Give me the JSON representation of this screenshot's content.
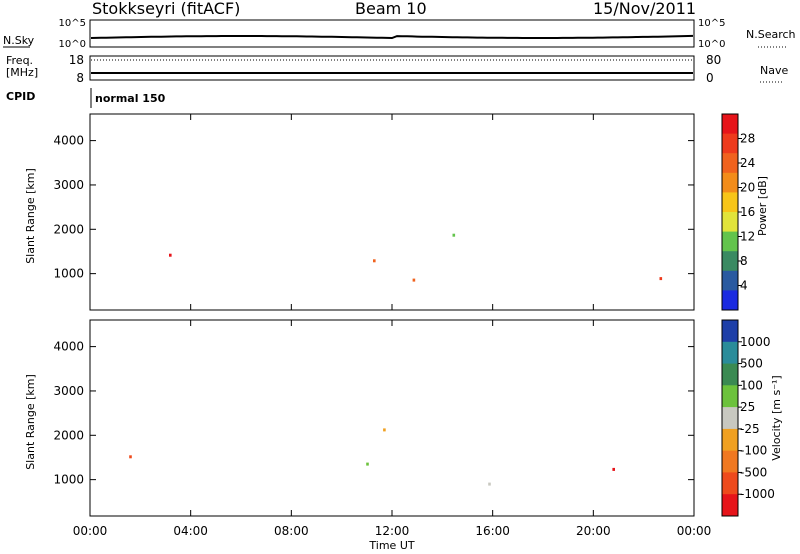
{
  "header": {
    "station": "Stokkseyri (fitACF)",
    "beam": "Beam 10",
    "date": "15/Nov/2011"
  },
  "status": {
    "nsky_label": "N.Sky",
    "nsky_ticks": [
      "10^5",
      "10^0"
    ],
    "nsearch_label": "N.Search",
    "freq_label_1": "Freq.",
    "freq_label_2": "[MHz]",
    "freq_ticks": [
      "18",
      "8"
    ],
    "nave_ticks": [
      "80",
      "0"
    ],
    "nave_label": "Nave",
    "cpid_label": "CPID",
    "cpid_text": "normal 150"
  },
  "chart_data": [
    {
      "type": "heatmap",
      "id": "power",
      "ylabel": "Slant Range [km]",
      "xlabel": "",
      "xlim": [
        "00:00",
        "24:00"
      ],
      "ylim": [
        180,
        4600
      ],
      "yticks": [
        1000,
        2000,
        3000,
        4000
      ],
      "colorbar_label": "Power [dB]",
      "colorbar_ticks": [
        "28",
        "24",
        "20",
        "16",
        "12",
        "8",
        "4"
      ],
      "colorbar_colors": [
        "#e6141a",
        "#ee3a1c",
        "#f0621e",
        "#f28c1a",
        "#f7c518",
        "#e1e43a",
        "#63c44c",
        "#3a8a62",
        "#2a5aa0",
        "#1a2ae0"
      ]
    },
    {
      "type": "heatmap",
      "id": "velocity",
      "ylabel": "Slant Range [km]",
      "xlabel": "Time UT",
      "xlim": [
        "00:00",
        "24:00"
      ],
      "ylim": [
        180,
        4600
      ],
      "yticks": [
        1000,
        2000,
        3000,
        4000
      ],
      "xticks": [
        "00:00",
        "04:00",
        "08:00",
        "12:00",
        "16:00",
        "20:00",
        "00:00"
      ],
      "colorbar_label": "Velocity [m s⁻¹]",
      "colorbar_ticks": [
        "1000",
        "500",
        "100",
        "25",
        "-25",
        "-100",
        "-500",
        "-1000"
      ],
      "colorbar_colors": [
        "#1e3fa8",
        "#2a8c9a",
        "#3a8a52",
        "#6cc23c",
        "#c8c8c0",
        "#f0a020",
        "#f07820",
        "#ee4a1c",
        "#e6141a"
      ]
    }
  ]
}
